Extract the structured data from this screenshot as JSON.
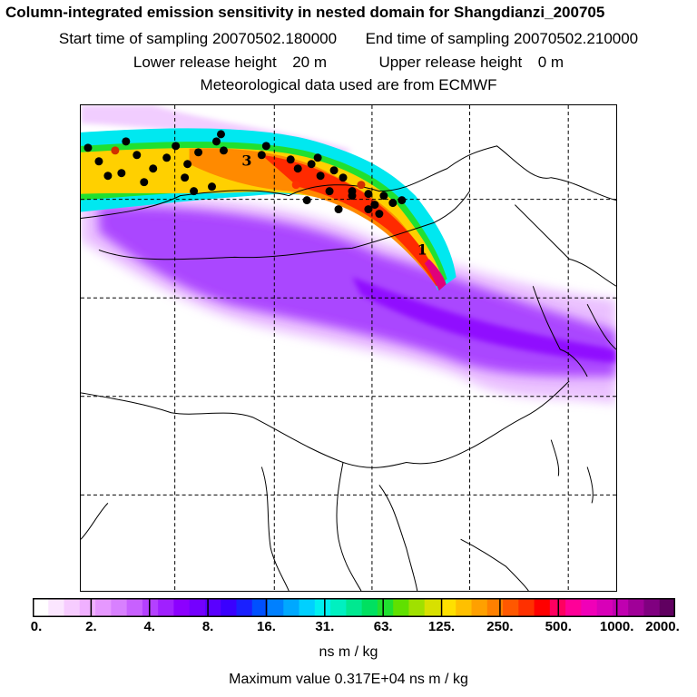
{
  "header": {
    "title": "Column-integrated emission sensitivity in nested domain for Shangdianzi_200705",
    "start_label": "Start time of sampling",
    "start_value": "20070502.180000",
    "end_label": "End time of sampling",
    "end_value": "20070502.210000",
    "lower_label": "Lower release height",
    "lower_value": "20 m",
    "upper_label": "Upper release height",
    "upper_value": "0 m",
    "met_text": "Meteorological data used are from ECMWF"
  },
  "map": {
    "day_labels": [
      "3",
      "1"
    ],
    "colors": {
      "plume_low": "#d070ff",
      "plume_mid": "#8a00ff",
      "cyan": "#00e8f0",
      "yellow": "#ffd000",
      "orange": "#ff8a00",
      "red": "#ff2a00",
      "magenta": "#e0007a"
    }
  },
  "colorbar": {
    "tick_labels": [
      "0.",
      "2.",
      "4.",
      "8.",
      "16.",
      "31.",
      "63.",
      "125.",
      "250.",
      "500.",
      "1000.",
      "2000."
    ],
    "colors": [
      "#ffffff",
      "#fbe6ff",
      "#f6ccff",
      "#f0b0ff",
      "#e698ff",
      "#d880ff",
      "#c860ff",
      "#b440ff",
      "#a020ff",
      "#8c00ff",
      "#7400ff",
      "#5a00ff",
      "#3a00ff",
      "#1a20ff",
      "#0050ff",
      "#0080ff",
      "#00a8ff",
      "#00d0ff",
      "#00f0f0",
      "#00f0c0",
      "#00e890",
      "#00e060",
      "#20e030",
      "#60e000",
      "#a0e000",
      "#d8e000",
      "#ffe000",
      "#ffc000",
      "#ffa000",
      "#ff8000",
      "#ff5800",
      "#ff3000",
      "#ff0000",
      "#ff0060",
      "#ff0098",
      "#f000b8",
      "#d800b8",
      "#c000b0",
      "#a00098",
      "#800080",
      "#600060"
    ],
    "units": "ns m / kg"
  },
  "footer": {
    "max_label": "Maximum value",
    "max_value": "0.317E+04 ns m / kg"
  }
}
